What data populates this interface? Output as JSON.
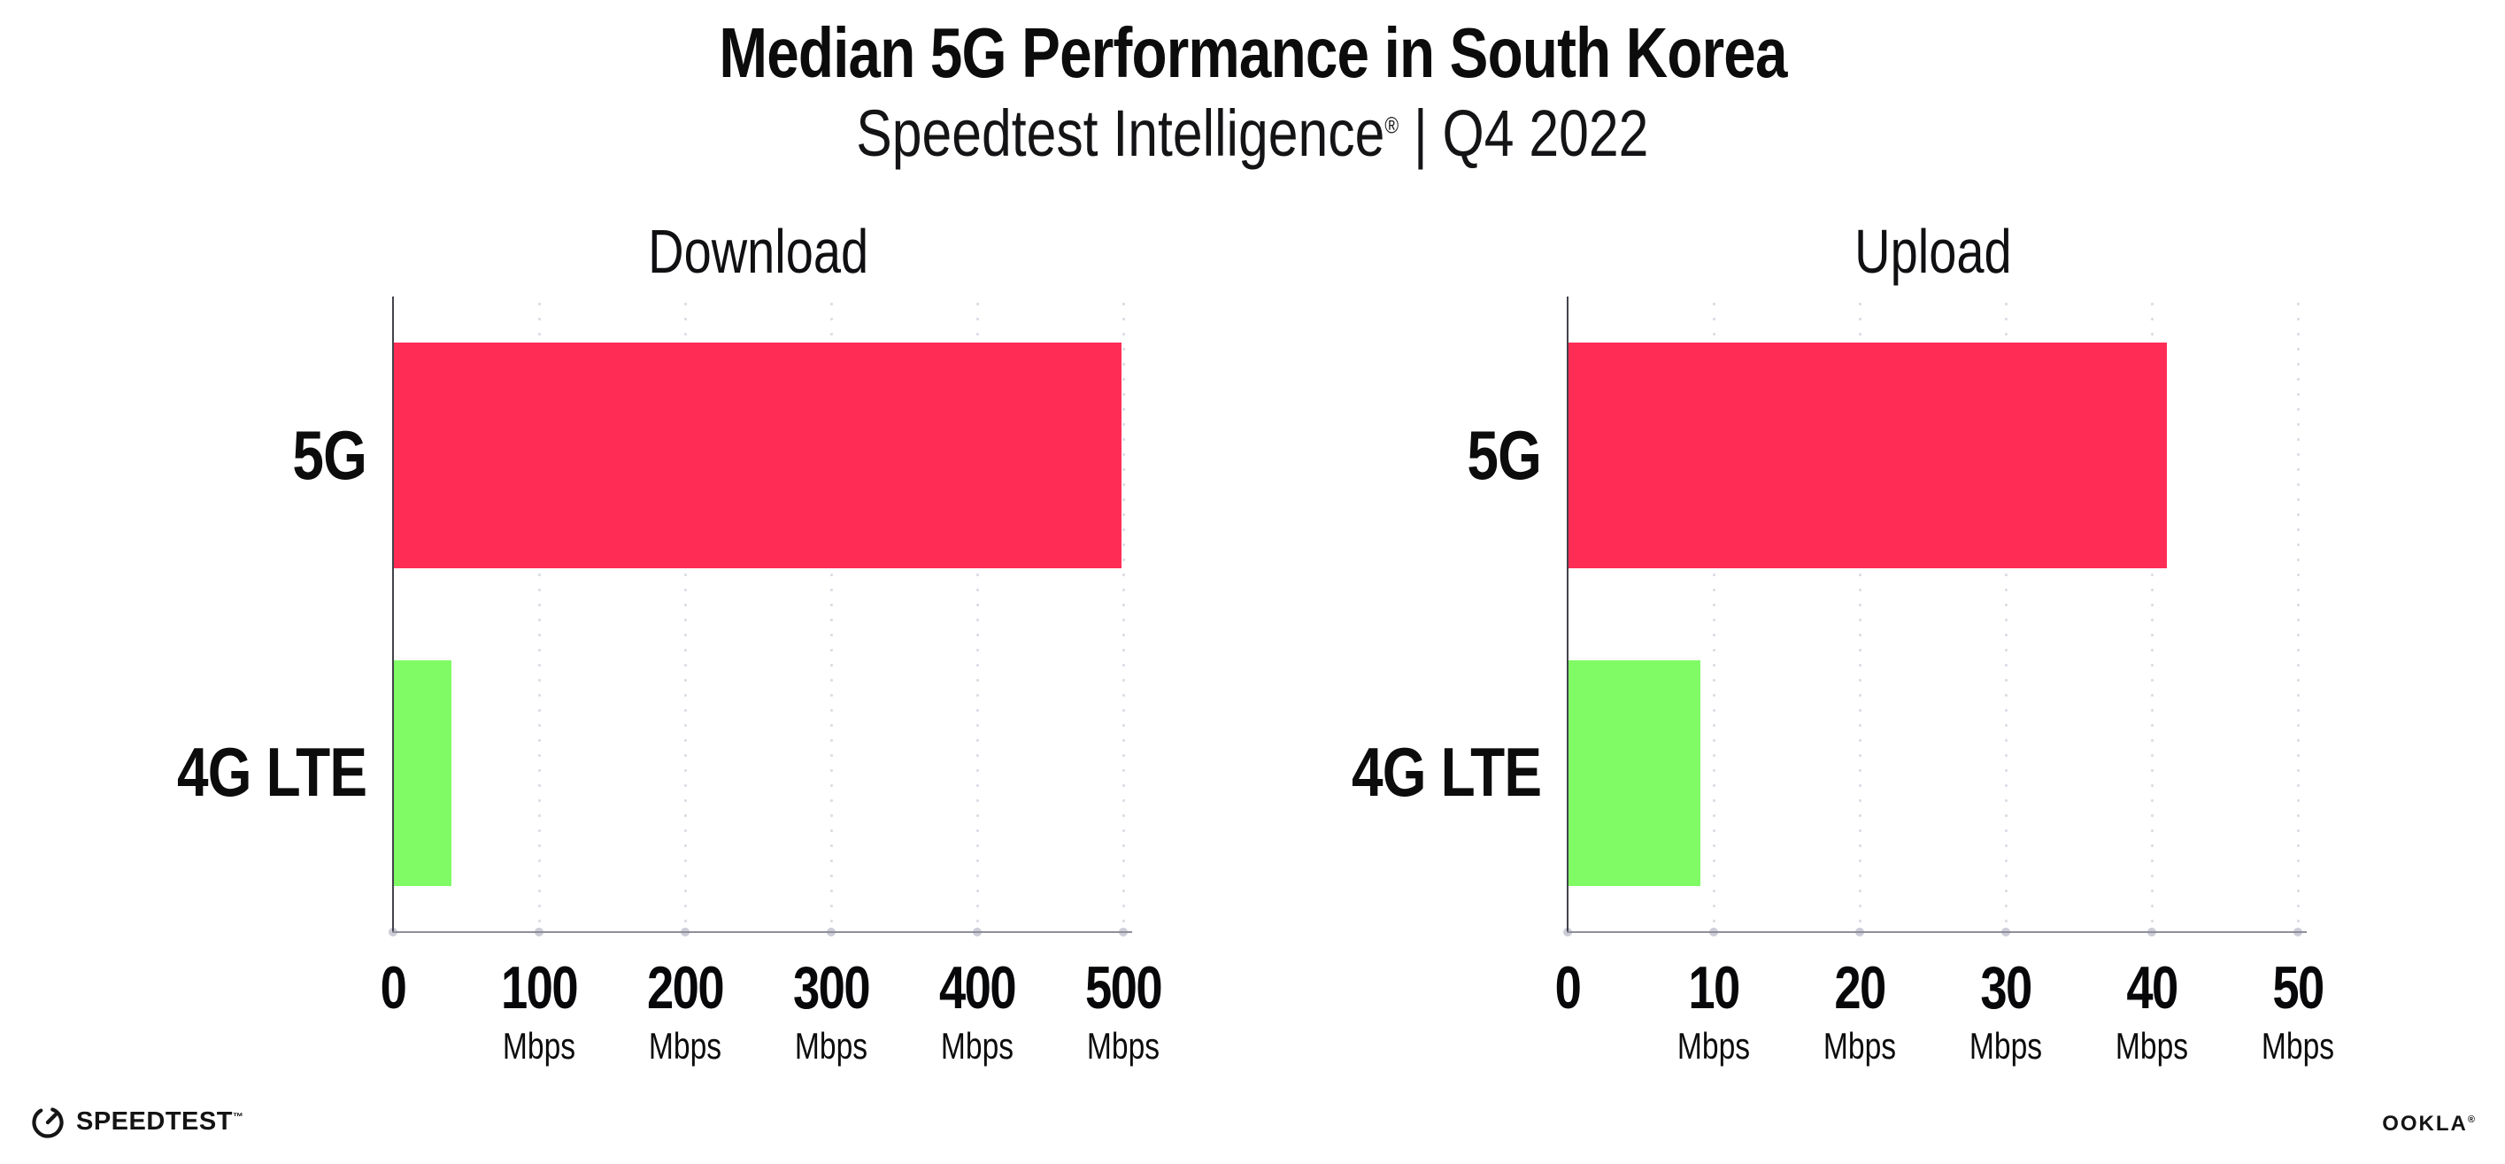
{
  "header": {
    "title": "Median 5G Performance in South Korea",
    "subtitle_brand": "Speedtest Intelligence",
    "subtitle_reg": "®",
    "subtitle_rest": " | Q4 2022"
  },
  "colors": {
    "bar_5g": "#FF2D55",
    "bar_4g": "#80FB66",
    "grid_dot": "#DCDCE6",
    "x_axis": "#8F8F99",
    "y_axis": "#43434B"
  },
  "chart_data": [
    {
      "type": "bar",
      "orientation": "horizontal",
      "title": "Download",
      "categories": [
        "5G",
        "4G LTE"
      ],
      "values": [
        499,
        40
      ],
      "unit": "Mbps",
      "xlabel_unit_on_zero": false,
      "xlim": [
        0,
        500
      ],
      "xticks": [
        0,
        100,
        200,
        300,
        400,
        500
      ],
      "bar_colors": [
        "#FF2D55",
        "#80FB66"
      ],
      "grid": "dotted-vertical",
      "legend": "none"
    },
    {
      "type": "bar",
      "orientation": "horizontal",
      "title": "Upload",
      "categories": [
        "5G",
        "4G LTE"
      ],
      "values": [
        41,
        9.1
      ],
      "unit": "Mbps",
      "xlabel_unit_on_zero": false,
      "xlim": [
        0,
        50
      ],
      "xticks": [
        0,
        10,
        20,
        30,
        40,
        50
      ],
      "bar_colors": [
        "#FF2D55",
        "#80FB66"
      ],
      "grid": "dotted-vertical",
      "legend": "none"
    }
  ],
  "footer": {
    "speedtest_label": "SPEEDTEST",
    "speedtest_mark": "™",
    "ookla_label": "OOKLA",
    "ookla_mark": "®"
  }
}
